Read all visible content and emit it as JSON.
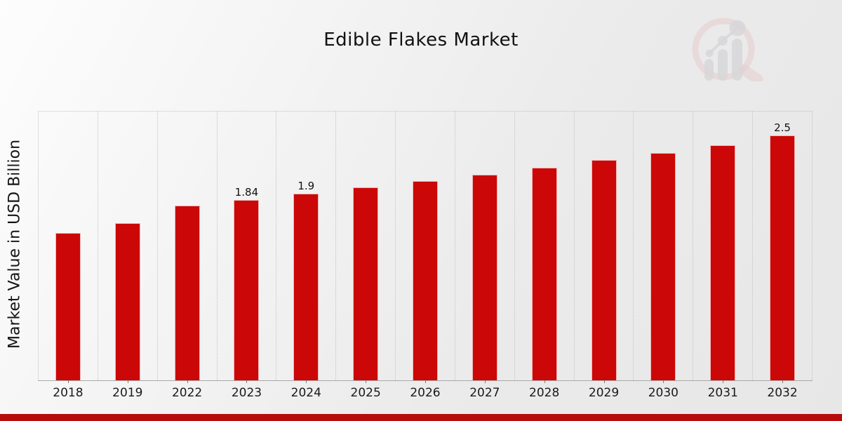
{
  "title": "Edible Flakes Market",
  "ylabel": "Market Value in USD Billion",
  "chart_data": {
    "type": "bar",
    "title": "Edible Flakes Market",
    "xlabel": "",
    "ylabel": "Market Value in USD Billion",
    "categories": [
      "2018",
      "2019",
      "2022",
      "2023",
      "2024",
      "2025",
      "2026",
      "2027",
      "2028",
      "2029",
      "2030",
      "2031",
      "2032"
    ],
    "values": [
      1.5,
      1.6,
      1.78,
      1.84,
      1.9,
      1.97,
      2.03,
      2.1,
      2.17,
      2.25,
      2.32,
      2.4,
      2.5
    ],
    "point_labels": [
      "",
      "",
      "",
      "1.84",
      "1.9",
      "",
      "",
      "",
      "",
      "",
      "",
      "",
      "2.5"
    ],
    "ylim": [
      0,
      2.75
    ],
    "y_ticks_visible": false,
    "grid": "vertical-dotted",
    "legend": "none"
  },
  "colors": {
    "bar": "#cb0707",
    "footer_bar": "#b60c0c",
    "gridline": "#c3c3c3",
    "axis": "#a9a9a9",
    "background_start": "#fdfdfd",
    "background_end": "#e7e7e7",
    "logo_ring": "#e5c5c5",
    "logo_bars": "#d2d2d6"
  },
  "branding": {
    "logo_name": "magnifier-growth-chart-watermark"
  }
}
